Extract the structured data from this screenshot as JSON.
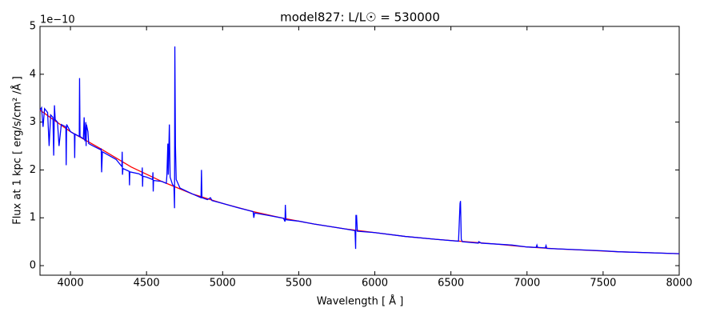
{
  "chart_data": {
    "type": "line",
    "title": "model827: L/L☉ = 530000",
    "x_label": "Wavelength [ Å ]",
    "y_label": "Flux at 1 kpc [ erg/s/cm² /Å ]",
    "y_offset_label": "1e−10",
    "xlim": [
      3800,
      8000
    ],
    "ylim": [
      -0.2,
      5
    ],
    "xticks": [
      4000,
      4500,
      5000,
      5500,
      6000,
      6500,
      7000,
      7500,
      8000
    ],
    "yticks": [
      0,
      1,
      2,
      3,
      4,
      5
    ],
    "series": [
      {
        "color": "#ff0000",
        "x": [
          3800,
          4000,
          4200,
          4400,
          4600,
          4800,
          5000,
          5200,
          5400,
          5600,
          5800,
          6000,
          6200,
          6400,
          6600,
          6800,
          7000,
          7200,
          7400,
          7600,
          7800,
          8000
        ],
        "values": [
          3.25,
          2.8,
          2.44,
          2.06,
          1.76,
          1.5,
          1.3,
          1.13,
          0.99,
          0.87,
          0.77,
          0.69,
          0.61,
          0.55,
          0.5,
          0.45,
          0.39,
          0.35,
          0.32,
          0.29,
          0.27,
          0.25
        ]
      },
      {
        "color": "#0000ff",
        "x": [
          3800,
          3810,
          3820,
          3830,
          3850,
          3860,
          3870,
          3885,
          3890,
          3895,
          3900,
          3915,
          3925,
          3940,
          3970,
          3972,
          3975,
          4000,
          4026,
          4028,
          4030,
          4058,
          4060,
          4063,
          4085,
          4090,
          4095,
          4101,
          4103,
          4105,
          4115,
          4120,
          4150,
          4200,
          4202,
          4205,
          4210,
          4300,
          4338,
          4340,
          4342,
          4345,
          4386,
          4388,
          4390,
          4450,
          4470,
          4472,
          4474,
          4476,
          4500,
          4540,
          4542,
          4544,
          4546,
          4600,
          4630,
          4634,
          4640,
          4643,
          4650,
          4655,
          4670,
          4680,
          4684,
          4686,
          4690,
          4695,
          4720,
          4800,
          4858,
          4861,
          4864,
          4900,
          4920,
          4930,
          5000,
          5100,
          5200,
          5205,
          5210,
          5300,
          5400,
          5410,
          5412,
          5416,
          5500,
          5600,
          5800,
          5870,
          5874,
          5876,
          5880,
          5885,
          6000,
          6200,
          6400,
          6550,
          6560,
          6563,
          6568,
          6575,
          6680,
          6683,
          6700,
          6900,
          7000,
          7060,
          7065,
          7070,
          7120,
          7125,
          7130,
          7500,
          7600,
          8000
        ],
        "values": [
          3.25,
          3.3,
          2.9,
          3.28,
          3.2,
          2.5,
          3.15,
          3.1,
          2.3,
          3.35,
          3.05,
          3.0,
          2.5,
          2.95,
          2.9,
          2.1,
          2.95,
          2.8,
          2.75,
          2.25,
          2.75,
          2.7,
          3.92,
          2.7,
          2.65,
          3.1,
          2.6,
          3.0,
          2.5,
          2.95,
          2.8,
          2.55,
          2.5,
          2.42,
          2.45,
          1.95,
          2.38,
          2.22,
          2.07,
          2.38,
          1.9,
          2.03,
          1.97,
          1.68,
          1.96,
          1.92,
          1.88,
          2.05,
          1.65,
          1.87,
          1.85,
          1.8,
          1.95,
          1.55,
          1.78,
          1.76,
          1.72,
          1.9,
          2.55,
          1.9,
          2.95,
          1.85,
          1.7,
          1.66,
          1.2,
          4.58,
          2.5,
          1.8,
          1.62,
          1.5,
          1.42,
          2.0,
          1.42,
          1.38,
          1.42,
          1.36,
          1.3,
          1.21,
          1.13,
          1.0,
          1.1,
          1.05,
          0.99,
          0.92,
          1.27,
          0.96,
          0.93,
          0.87,
          0.77,
          0.73,
          0.35,
          1.05,
          1.05,
          0.72,
          0.69,
          0.61,
          0.55,
          0.51,
          1.3,
          1.35,
          0.55,
          0.5,
          0.47,
          0.5,
          0.47,
          0.43,
          0.39,
          0.38,
          0.43,
          0.38,
          0.37,
          0.42,
          0.36,
          0.31,
          0.29,
          0.25
        ]
      }
    ]
  }
}
